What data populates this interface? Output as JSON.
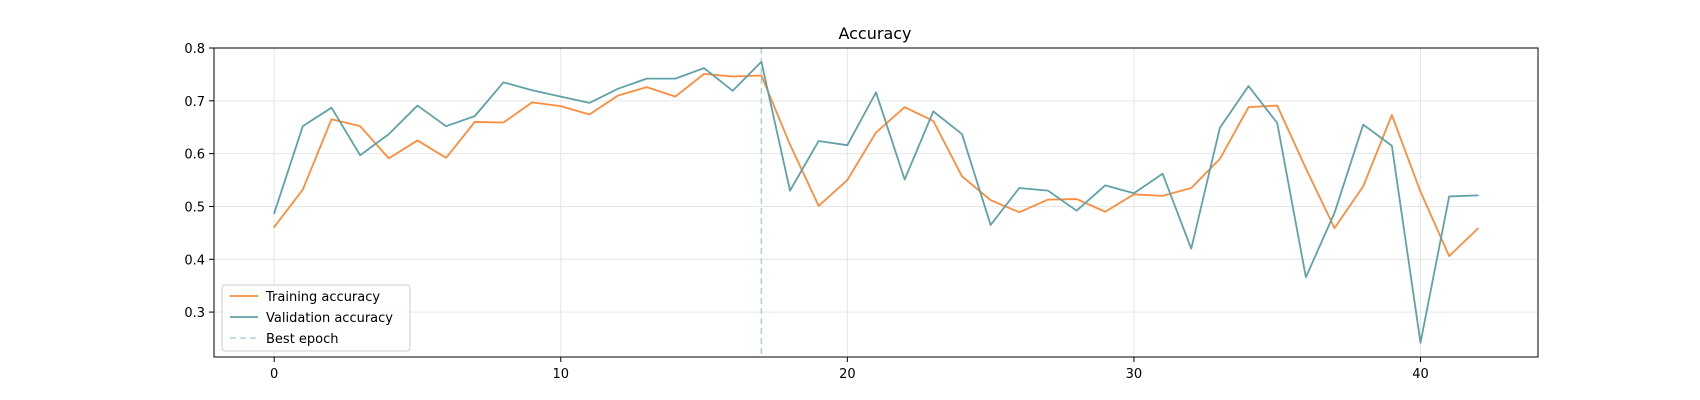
{
  "chart_data": {
    "type": "line",
    "title": "Accuracy",
    "xlabel": "",
    "ylabel": "",
    "xlim": [
      -2.1,
      44.1
    ],
    "ylim": [
      0.215,
      0.8
    ],
    "xticks": [
      0,
      10,
      20,
      30,
      40
    ],
    "yticks": [
      0.3,
      0.4,
      0.5,
      0.6,
      0.7,
      0.8
    ],
    "grid": true,
    "legend_position": "lower-left",
    "x": [
      0,
      1,
      2,
      3,
      4,
      5,
      6,
      7,
      8,
      9,
      10,
      11,
      12,
      13,
      14,
      15,
      16,
      17,
      18,
      19,
      20,
      21,
      22,
      23,
      24,
      25,
      26,
      27,
      28,
      29,
      30,
      31,
      32,
      33,
      34,
      35,
      36,
      37,
      38,
      39,
      40,
      41,
      42
    ],
    "series": [
      {
        "name": "Training accuracy",
        "color": "#fd8d3c",
        "values": [
          0.461,
          0.532,
          0.665,
          0.652,
          0.591,
          0.625,
          0.592,
          0.66,
          0.659,
          0.697,
          0.69,
          0.674,
          0.71,
          0.726,
          0.708,
          0.751,
          0.746,
          0.748,
          0.617,
          0.501,
          0.55,
          0.64,
          0.688,
          0.662,
          0.557,
          0.512,
          0.489,
          0.513,
          0.514,
          0.49,
          0.523,
          0.52,
          0.535,
          0.59,
          0.688,
          0.691,
          0.572,
          0.459,
          0.538,
          0.673,
          0.528,
          0.406,
          0.458
        ]
      },
      {
        "name": "Validation accuracy",
        "color": "#5fa2a8",
        "values": [
          0.487,
          0.652,
          0.687,
          0.597,
          0.637,
          0.691,
          0.652,
          0.671,
          0.735,
          0.72,
          0.708,
          0.696,
          0.723,
          0.742,
          0.742,
          0.762,
          0.719,
          0.774,
          0.53,
          0.624,
          0.616,
          0.716,
          0.551,
          0.68,
          0.637,
          0.465,
          0.535,
          0.53,
          0.492,
          0.54,
          0.525,
          0.562,
          0.42,
          0.649,
          0.728,
          0.658,
          0.366,
          0.488,
          0.655,
          0.615,
          0.242,
          0.519,
          0.521
        ]
      }
    ],
    "vlines": [
      {
        "name": "Best epoch",
        "x": 17,
        "color": "#a9d4d6",
        "style": "dashed"
      }
    ]
  }
}
